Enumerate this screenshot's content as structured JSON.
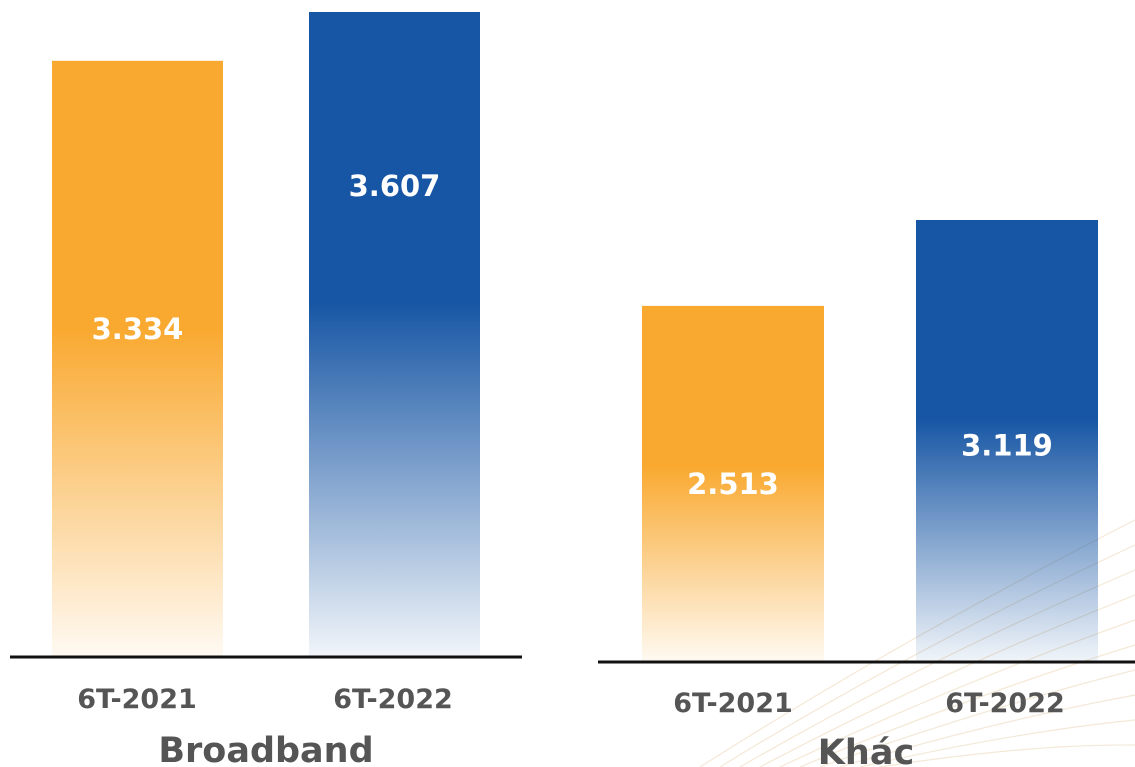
{
  "chart_data": [
    {
      "type": "bar",
      "title": "Broadband",
      "categories": [
        "6T-2021",
        "6T-2022"
      ],
      "values": [
        3334,
        3607
      ],
      "value_labels": [
        "3.334",
        "3.607"
      ],
      "colors": [
        "#f9a930",
        "#1756a4"
      ]
    },
    {
      "type": "bar",
      "title": "Khác",
      "categories": [
        "6T-2021",
        "6T-2022"
      ],
      "values": [
        2513,
        3119
      ],
      "value_labels": [
        "2.513",
        "3.119"
      ],
      "colors": [
        "#f9a930",
        "#1756a4"
      ]
    }
  ]
}
